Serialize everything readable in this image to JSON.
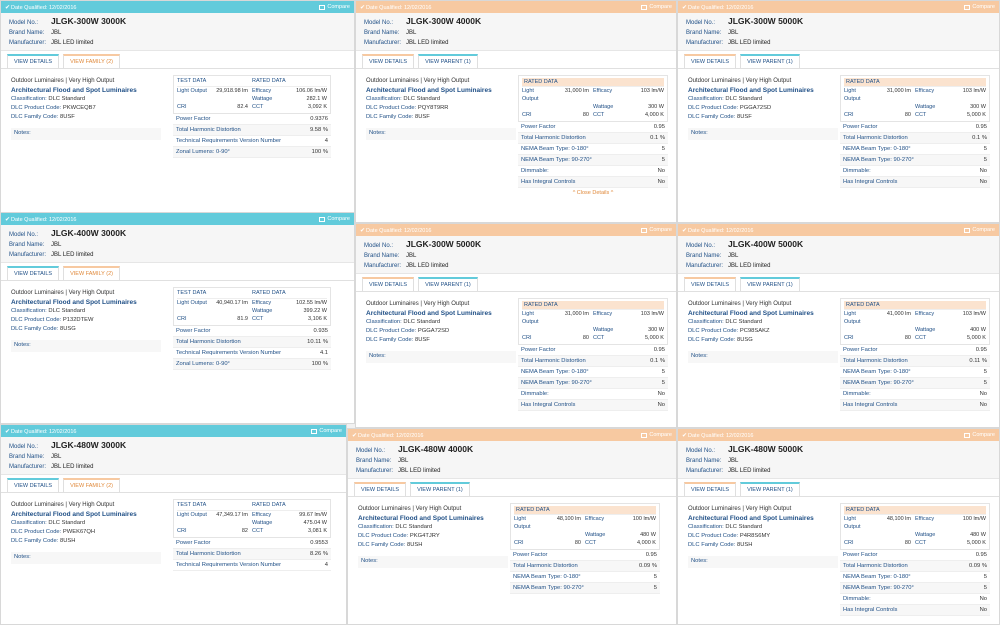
{
  "colors": {
    "blue_bar": "#62cbdb",
    "orange_bar": "#f7c9a1",
    "link": "#1f4f86"
  },
  "labels": {
    "date_qualified": "Date Qualified: 12/02/2016",
    "compare": "Compare",
    "model_no": "Model No.:",
    "brand_name": "Brand Name:",
    "manufacturer": "Manufacturer:",
    "view_details": "VIEW DETAILS",
    "view_family": "VIEW FAMILY (2)",
    "view_parent": "VIEW PARENT (1)",
    "test_data": "TEST DATA",
    "rated_data": "RATED DATA",
    "light_output": "Light Output",
    "efficacy": "Efficacy",
    "wattage": "Wattage",
    "cri": "CRI",
    "cct": "CCT",
    "classification": "Classification:",
    "product_code": "DLC Product Code:",
    "family_code": "DLC Family Code:",
    "notes": "Notes:",
    "close_details": "^ Close Details ^"
  },
  "cards": [
    {
      "type": "parent",
      "model": "JLGK-300W 3000K",
      "brand": "JBL",
      "manufacturer": "JBL LED limited",
      "category": "Outdoor Luminaires | Very High Output",
      "title": "Architectural Flood and Spot Luminaires",
      "classification": "DLC Standard",
      "product_code": "PKWCEQB7",
      "family_code": "8USF",
      "test": {
        "light": "29,918.98 lm",
        "efficacy": "106.06 lm/W",
        "wattage": "282.1 W",
        "cri": "82.4",
        "cct": "3,092 K"
      },
      "specs": [
        [
          "Power Factor",
          "0.9376"
        ],
        [
          "Total Harmonic Distortion",
          "9.58 %"
        ],
        [
          "Technical Requirements Version Number",
          "4"
        ],
        [
          "Zonal Lumens: 0-90°",
          "100 %"
        ]
      ]
    },
    {
      "type": "child",
      "model": "JLGK-300W 4000K",
      "brand": "JBL",
      "manufacturer": "JBL LED limited",
      "category": "Outdoor Luminaires | Very High Output",
      "title": "Architectural Flood and Spot Luminaires",
      "classification": "DLC Standard",
      "product_code": "PQY8T9RR",
      "family_code": "8USF",
      "rated": {
        "light": "31,000 lm",
        "efficacy": "103 lm/W",
        "wattage": "300 W",
        "cri": "80",
        "cct": "4,000 K"
      },
      "specs": [
        [
          "Power Factor",
          "0.95"
        ],
        [
          "Total Harmonic Distortion",
          "0.1 %"
        ],
        [
          "NEMA Beam Type: 0-180°",
          "5"
        ],
        [
          "NEMA Beam Type: 90-270°",
          "5"
        ],
        [
          "Dimmable:",
          "No"
        ],
        [
          "Has Integral Controls",
          "No"
        ]
      ]
    },
    {
      "type": "child",
      "model": "JLGK-300W 5000K",
      "brand": "JBL",
      "manufacturer": "JBL LED limited",
      "category": "Outdoor Luminaires | Very High Output",
      "title": "Architectural Flood and Spot Luminaires",
      "classification": "DLC Standard",
      "product_code": "PGGA72SD",
      "family_code": "8USF",
      "rated": {
        "light": "31,000 lm",
        "efficacy": "103 lm/W",
        "wattage": "300 W",
        "cri": "80",
        "cct": "5,000 K"
      },
      "specs": [
        [
          "Power Factor",
          "0.95"
        ],
        [
          "Total Harmonic Distortion",
          "0.1 %"
        ],
        [
          "NEMA Beam Type: 0-180°",
          "5"
        ],
        [
          "NEMA Beam Type: 90-270°",
          "5"
        ],
        [
          "Dimmable:",
          "No"
        ],
        [
          "Has Integral Controls",
          "No"
        ]
      ]
    },
    {
      "type": "parent",
      "model": "JLGK-400W 3000K",
      "brand": "JBL",
      "manufacturer": "JBL LED limited",
      "category": "Outdoor Luminaires | Very High Output",
      "title": "Architectural Flood and Spot Luminaires",
      "classification": "DLC Standard",
      "product_code": "P132DTEW",
      "family_code": "8USG",
      "test": {
        "light": "40,940.17 lm",
        "efficacy": "102.55 lm/W",
        "wattage": "399.22 W",
        "cri": "81.9",
        "cct": "3,106 K"
      },
      "specs": [
        [
          "Power Factor",
          "0.935"
        ],
        [
          "Total Harmonic Distortion",
          "10.11 %"
        ],
        [
          "Technical Requirements Version Number",
          "4.1"
        ],
        [
          "Zonal Lumens: 0-90°",
          "100 %"
        ]
      ]
    },
    {
      "type": "child",
      "model": "JLGK-300W 5000K",
      "brand": "JBL",
      "manufacturer": "JBL LED limited",
      "category": "Outdoor Luminaires | Very High Output",
      "title": "Architectural Flood and Spot Luminaires",
      "classification": "DLC Standard",
      "product_code": "PGGA72SD",
      "family_code": "8USF",
      "rated": {
        "light": "31,000 lm",
        "efficacy": "103 lm/W",
        "wattage": "300 W",
        "cri": "80",
        "cct": "5,000 K"
      },
      "specs": [
        [
          "Power Factor",
          "0.95"
        ],
        [
          "Total Harmonic Distortion",
          "0.1 %"
        ],
        [
          "NEMA Beam Type: 0-180°",
          "5"
        ],
        [
          "NEMA Beam Type: 90-270°",
          "5"
        ],
        [
          "Dimmable:",
          "No"
        ],
        [
          "Has Integral Controls",
          "No"
        ]
      ]
    },
    {
      "type": "child",
      "model": "JLGK-400W 5000K",
      "brand": "JBL",
      "manufacturer": "JBL LED limited",
      "category": "Outdoor Luminaires | Very High Output",
      "title": "Architectural Flood and Spot Luminaires",
      "classification": "DLC Standard",
      "product_code": "PC98SAKZ",
      "family_code": "8USG",
      "rated": {
        "light": "41,000 lm",
        "efficacy": "103 lm/W",
        "wattage": "400 W",
        "cri": "80",
        "cct": "5,000 K"
      },
      "specs": [
        [
          "Power Factor",
          "0.95"
        ],
        [
          "Total Harmonic Distortion",
          "0.11 %"
        ],
        [
          "NEMA Beam Type: 0-180°",
          "5"
        ],
        [
          "NEMA Beam Type: 90-270°",
          "5"
        ],
        [
          "Dimmable:",
          "No"
        ],
        [
          "Has Integral Controls",
          "No"
        ]
      ]
    },
    {
      "type": "parent",
      "model": "JLGK-480W 3000K",
      "brand": "JBL",
      "manufacturer": "JBL LED limited",
      "category": "Outdoor Luminaires | Very High Output",
      "title": "Architectural Flood and Spot Luminaires",
      "classification": "DLC Standard",
      "product_code": "PWEK67QH",
      "family_code": "8USH",
      "test": {
        "light": "47,349.17 lm",
        "efficacy": "99.67 lm/W",
        "wattage": "475.04 W",
        "cri": "82",
        "cct": "3,081 K"
      },
      "specs": [
        [
          "Power Factor",
          "0.9553"
        ],
        [
          "Total Harmonic Distortion",
          "8.26 %"
        ],
        [
          "Technical Requirements Version Number",
          "4"
        ]
      ]
    },
    {
      "type": "child",
      "model": "JLGK-480W 4000K",
      "brand": "JBL",
      "manufacturer": "JBL LED limited",
      "category": "Outdoor Luminaires | Very High Output",
      "title": "Architectural Flood and Spot Luminaires",
      "classification": "DLC Standard",
      "product_code": "PKG4TJRY",
      "family_code": "8USH",
      "rated": {
        "light": "48,100 lm",
        "efficacy": "100 lm/W",
        "wattage": "480 W",
        "cri": "80",
        "cct": "4,000 K"
      },
      "specs": [
        [
          "Power Factor",
          "0.95"
        ],
        [
          "Total Harmonic Distortion",
          "0.09 %"
        ],
        [
          "NEMA Beam Type: 0-180°",
          "5"
        ],
        [
          "NEMA Beam Type: 90-270°",
          "5"
        ]
      ]
    },
    {
      "type": "child",
      "model": "JLGK-480W 5000K",
      "brand": "JBL",
      "manufacturer": "JBL LED limited",
      "category": "Outdoor Luminaires | Very High Output",
      "title": "Architectural Flood and Spot Luminaires",
      "classification": "DLC Standard",
      "product_code": "P4R8S6MY",
      "family_code": "8USH",
      "rated": {
        "light": "48,100 lm",
        "efficacy": "100 lm/W",
        "wattage": "480 W",
        "cri": "80",
        "cct": "5,000 K"
      },
      "specs": [
        [
          "Power Factor",
          "0.95"
        ],
        [
          "Total Harmonic Distortion",
          "0.09 %"
        ],
        [
          "NEMA Beam Type: 0-180°",
          "5"
        ],
        [
          "NEMA Beam Type: 90-270°",
          "5"
        ],
        [
          "Dimmable:",
          "No"
        ],
        [
          "Has Integral Controls",
          "No"
        ]
      ]
    }
  ]
}
